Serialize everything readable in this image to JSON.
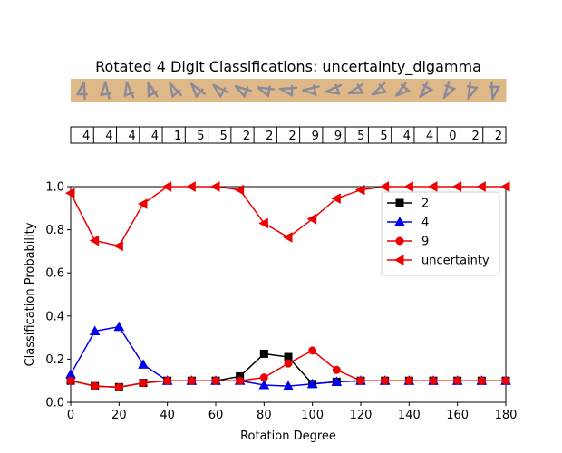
{
  "chart_data": {
    "type": "line",
    "title": "Rotated 4 Digit Classifications: uncertainty_digamma",
    "xlabel": "Rotation Degree",
    "ylabel": "Classification Probability",
    "xlim": [
      0,
      180
    ],
    "ylim": [
      0,
      1.0
    ],
    "xticks": [
      "0",
      "20",
      "40",
      "60",
      "80",
      "100",
      "120",
      "140",
      "160",
      "180"
    ],
    "yticks": [
      "0.0",
      "0.2",
      "0.4",
      "0.6",
      "0.8",
      "1.0"
    ],
    "grid": false,
    "legend_position": "top-right",
    "x": [
      0,
      10,
      20,
      30,
      40,
      50,
      60,
      70,
      80,
      90,
      100,
      110,
      120,
      130,
      140,
      150,
      160,
      170,
      180
    ],
    "predicted_labels": [
      "4",
      "4",
      "4",
      "4",
      "1",
      "5",
      "5",
      "2",
      "2",
      "2",
      "9",
      "9",
      "5",
      "5",
      "4",
      "4",
      "0",
      "2",
      "2"
    ],
    "series": [
      {
        "name": "2",
        "color": "#000000",
        "marker": "square",
        "values": [
          0.1,
          0.075,
          0.07,
          0.09,
          0.1,
          0.1,
          0.1,
          0.12,
          0.225,
          0.21,
          0.085,
          0.095,
          0.1,
          0.1,
          0.1,
          0.1,
          0.1,
          0.1,
          0.1
        ]
      },
      {
        "name": "4",
        "color": "#0000ee",
        "marker": "triangle-up",
        "values": [
          0.13,
          0.33,
          0.35,
          0.175,
          0.1,
          0.1,
          0.1,
          0.1,
          0.08,
          0.075,
          0.085,
          0.095,
          0.1,
          0.1,
          0.1,
          0.1,
          0.1,
          0.1,
          0.1
        ]
      },
      {
        "name": "9",
        "color": "#ee0000",
        "marker": "circle",
        "values": [
          0.1,
          0.075,
          0.07,
          0.09,
          0.1,
          0.1,
          0.1,
          0.1,
          0.115,
          0.18,
          0.24,
          0.15,
          0.1,
          0.1,
          0.1,
          0.1,
          0.1,
          0.1,
          0.1
        ]
      },
      {
        "name": "uncertainty",
        "color": "#ee0000",
        "marker": "triangle-left",
        "values": [
          0.97,
          0.75,
          0.725,
          0.92,
          1.0,
          1.0,
          1.0,
          0.985,
          0.83,
          0.765,
          0.85,
          0.945,
          0.985,
          1.0,
          1.0,
          1.0,
          1.0,
          1.0,
          1.0
        ]
      }
    ]
  }
}
